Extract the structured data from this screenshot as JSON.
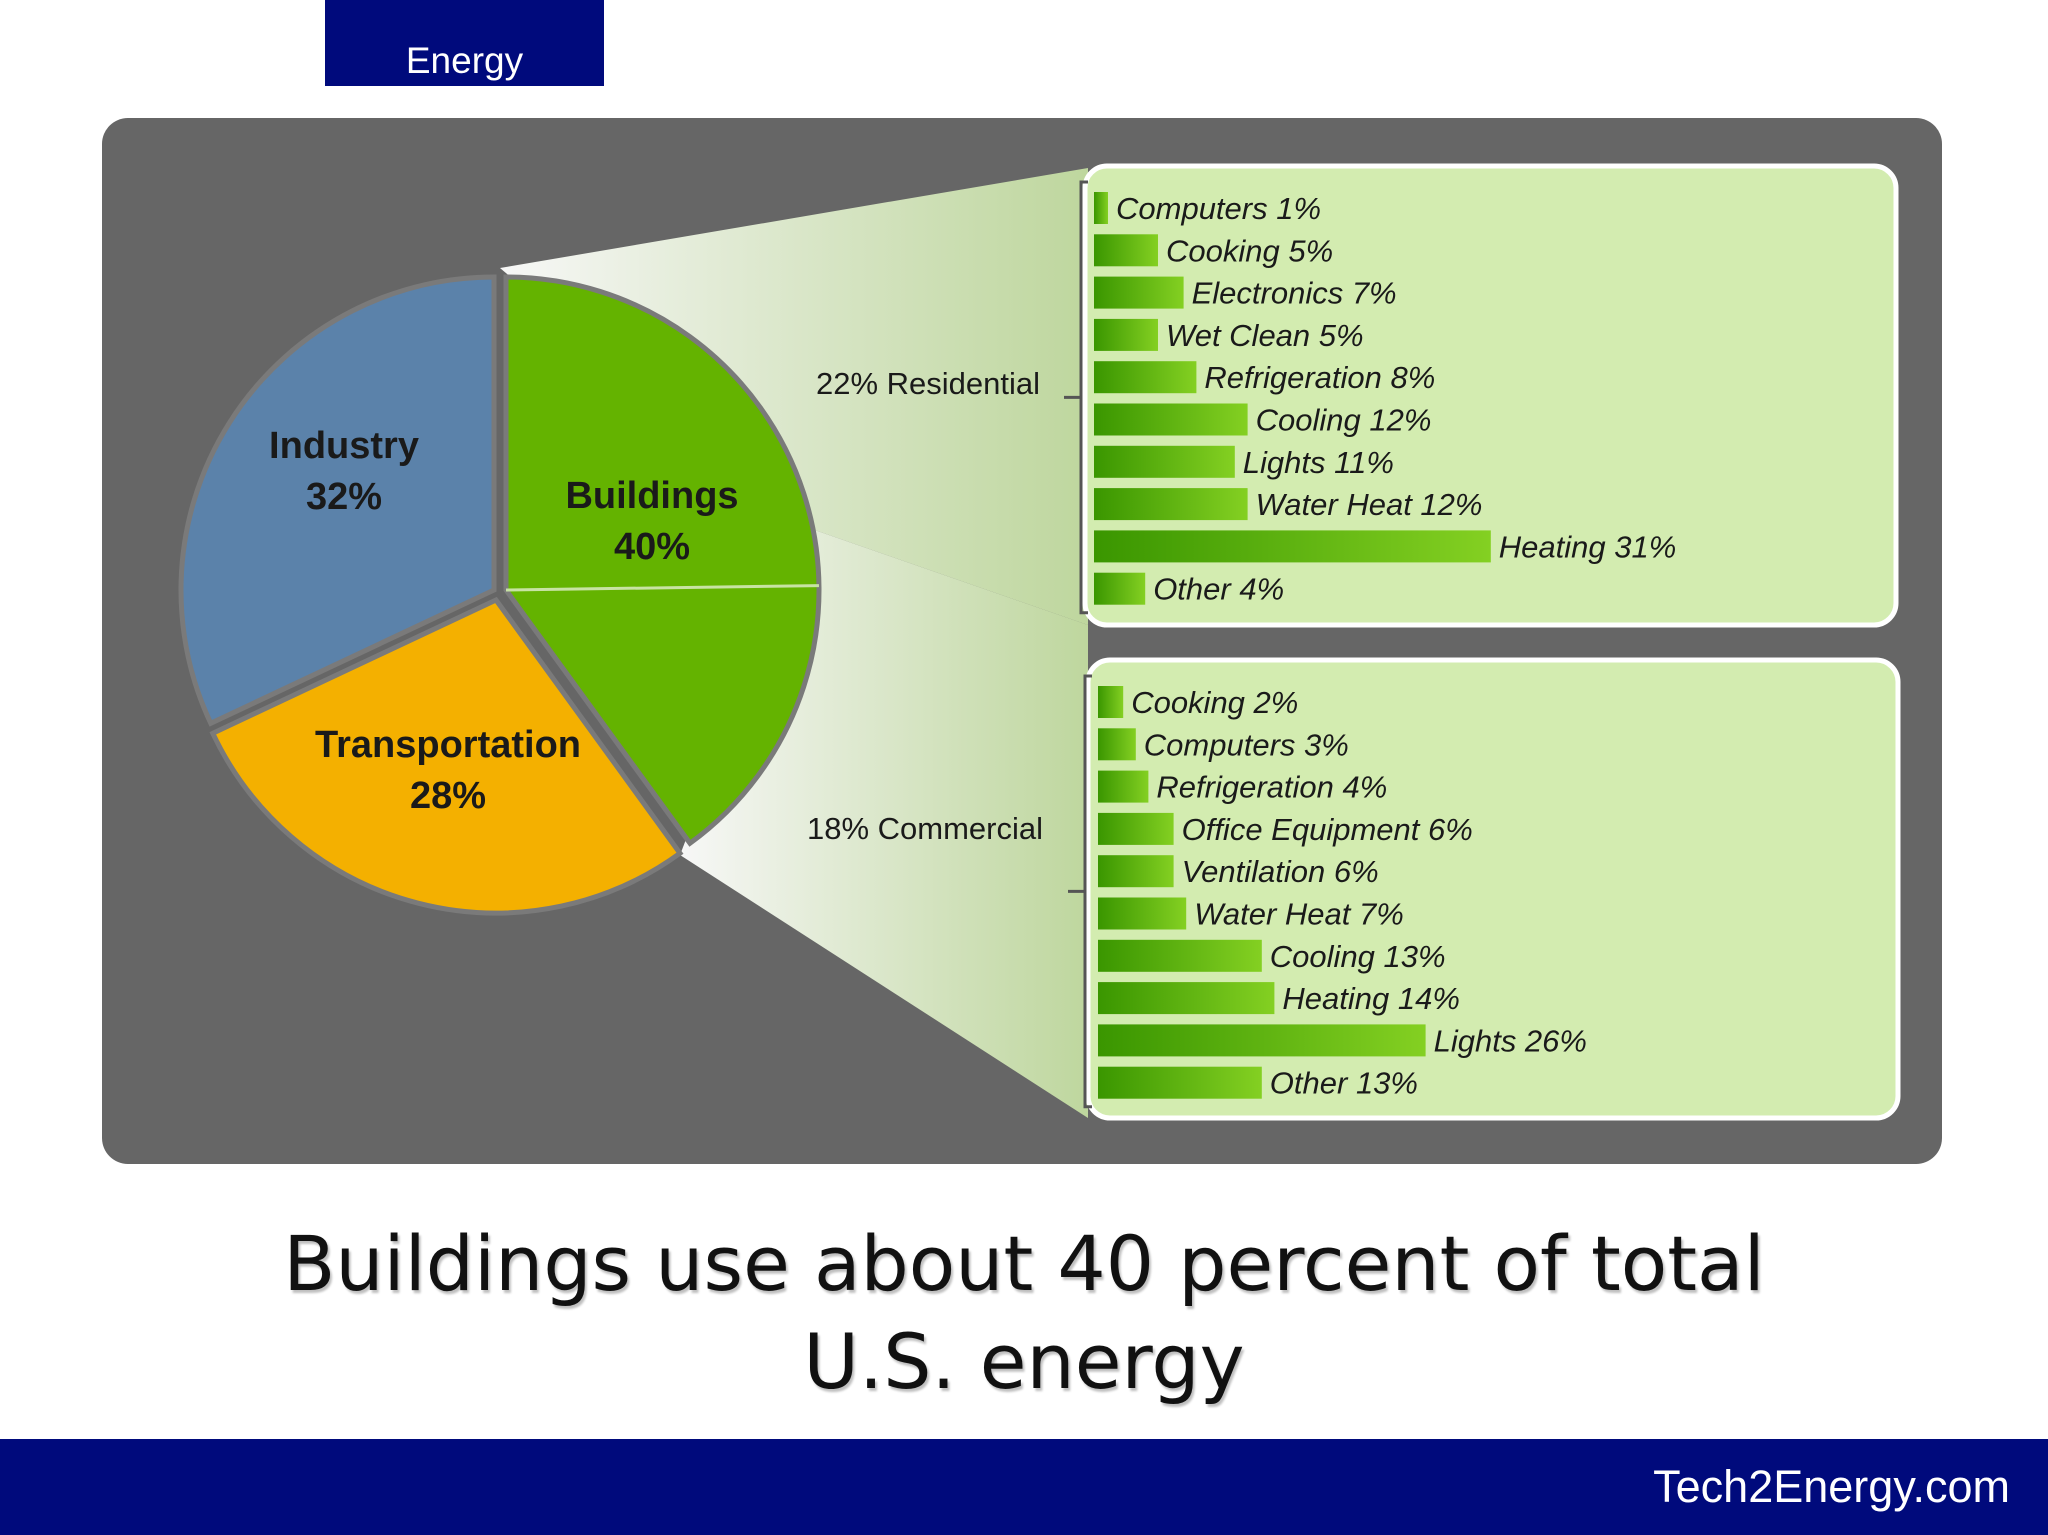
{
  "header": {
    "tab_label": "Energy"
  },
  "footer": {
    "site": "Tech2Energy.com"
  },
  "headline": {
    "line1": "Buildings use about 40 percent of total",
    "line2": "U.S. energy"
  },
  "colors": {
    "navy": "#000a7c",
    "panel_bg": "#666666",
    "industry": "#5b82aa",
    "transportation": "#f4b000",
    "buildings": "#64b300",
    "detail_box": "#d3ecb0",
    "bar_dark": "#3f9c00",
    "bar_light": "#7fcc1e"
  },
  "chart_data": [
    {
      "type": "pie",
      "slices": [
        {
          "name": "Industry",
          "label": "32%",
          "value": 32
        },
        {
          "name": "Buildings",
          "label": "40%",
          "value": 40
        },
        {
          "name": "Transportation",
          "label": "28%",
          "value": 28
        }
      ],
      "buildings_split": [
        {
          "name": "Residential",
          "label": "22% Residential",
          "value": 22
        },
        {
          "name": "Commercial",
          "label": "18% Commercial",
          "value": 18
        }
      ]
    },
    {
      "type": "bar",
      "title": "22% Residential",
      "categories": [
        "Computers",
        "Cooking",
        "Electronics",
        "Wet Clean",
        "Refrigeration",
        "Cooling",
        "Lights",
        "Water Heat",
        "Heating",
        "Other"
      ],
      "values": [
        1,
        5,
        7,
        5,
        8,
        12,
        11,
        12,
        31,
        4
      ],
      "labels": [
        "Computers 1%",
        "Cooking 5%",
        "Electronics 7%",
        "Wet Clean 5%",
        "Refrigeration 8%",
        "Cooling 12%",
        "Lights 11%",
        "Water Heat 12%",
        "Heating 31%",
        "Other 4%"
      ]
    },
    {
      "type": "bar",
      "title": "18% Commercial",
      "categories": [
        "Cooking",
        "Computers",
        "Refrigeration",
        "Office Equipment",
        "Ventilation",
        "Water Heat",
        "Cooling",
        "Heating",
        "Lights",
        "Other"
      ],
      "values": [
        2,
        3,
        4,
        6,
        6,
        7,
        13,
        14,
        26,
        13
      ],
      "labels": [
        "Cooking 2%",
        "Computers 3%",
        "Refrigeration 4%",
        "Office Equipment 6%",
        "Ventilation 6%",
        "Water Heat 7%",
        "Cooling 13%",
        "Heating 14%",
        "Lights 26%",
        "Other 13%"
      ]
    }
  ]
}
